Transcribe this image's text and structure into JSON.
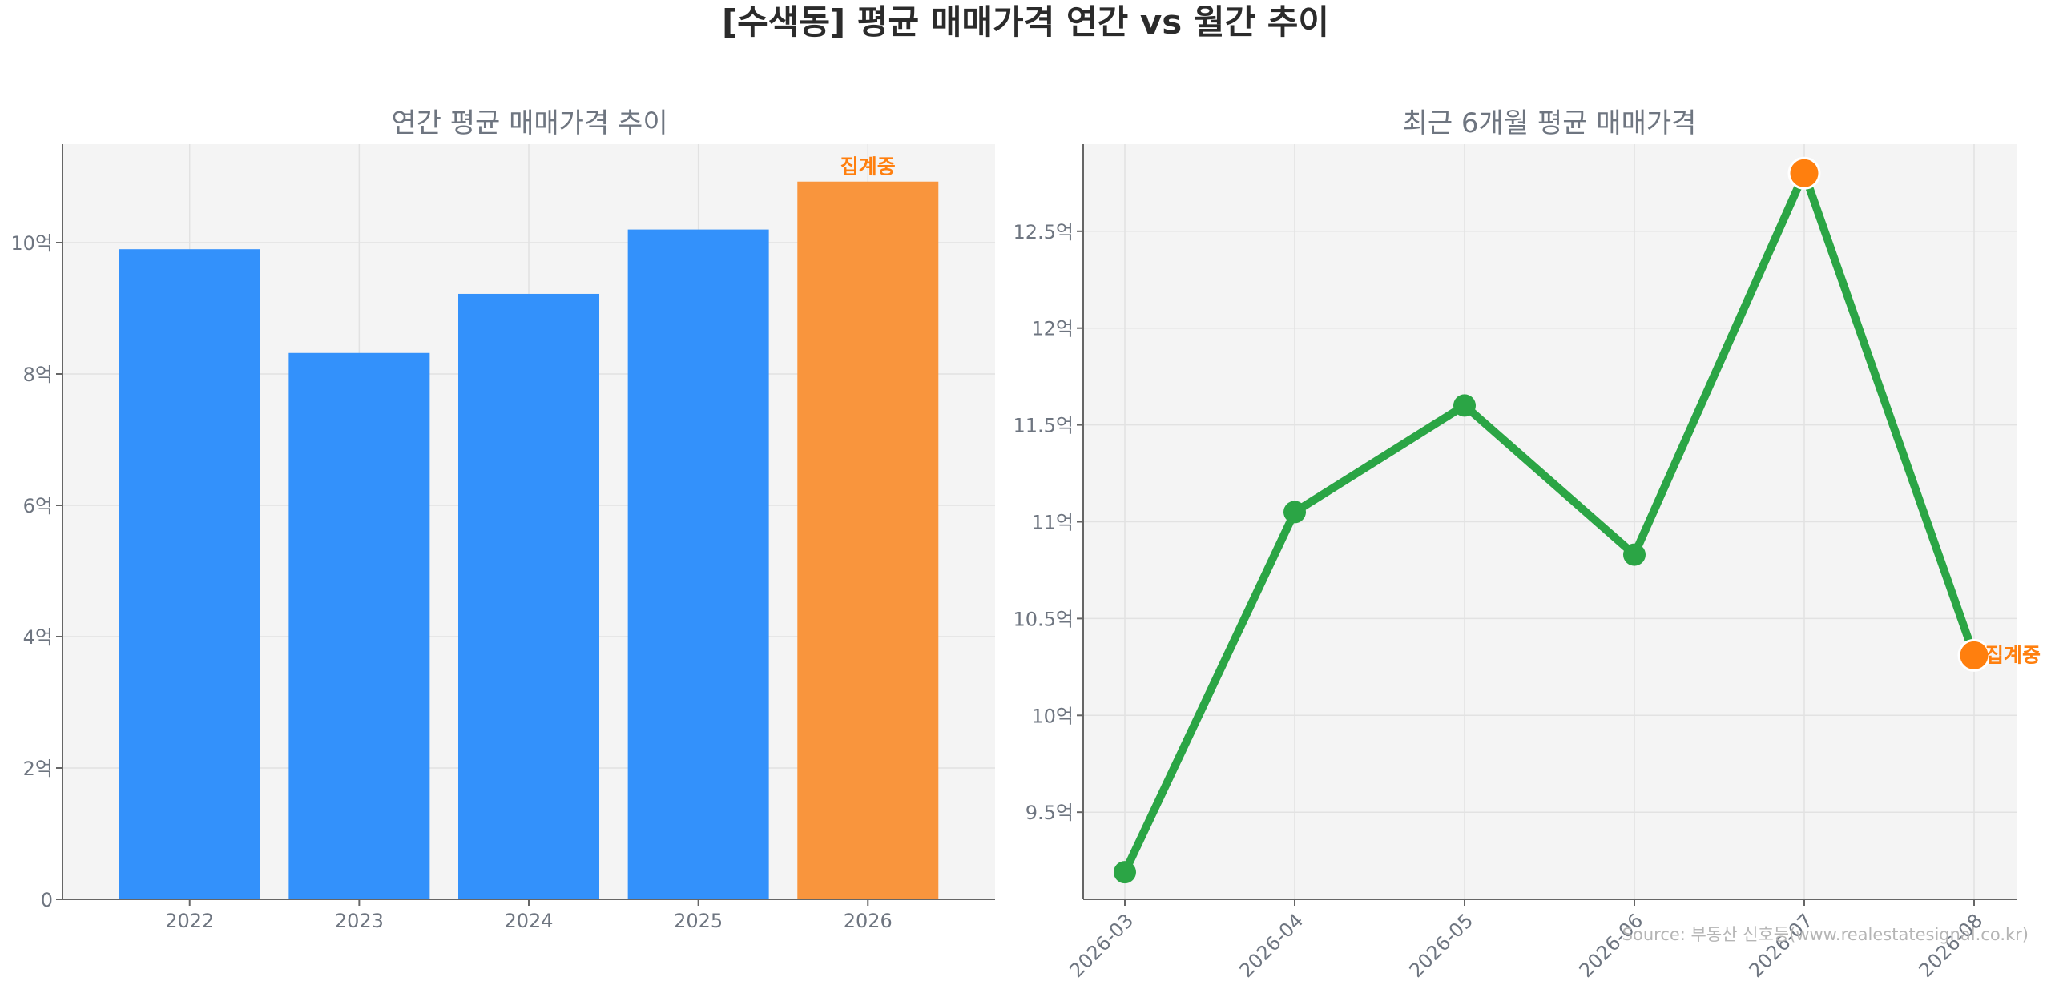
{
  "figure_title": "[수색동] 평균 매매가격 연간 vs 월간 추이",
  "source": "Source: 부동산 신호등(www.realestatesignal.co.kr)",
  "colors": {
    "bar_blue": "#3391fb",
    "bar_orange": "#f9953d",
    "line_green": "#2ba545",
    "highlight_orange": "#ff7f0e",
    "panel_bg": "#f4f4f4"
  },
  "chart_data": [
    {
      "type": "bar",
      "title": "연간 평균 매매가격 추이",
      "categories": [
        "2022",
        "2023",
        "2024",
        "2025",
        "2026"
      ],
      "values": [
        9.9,
        8.32,
        9.22,
        10.2,
        10.93
      ],
      "unit_suffix": "억",
      "ylim": [
        0,
        11.5
      ],
      "yticks": [
        {
          "value": 0,
          "label": "0"
        },
        {
          "value": 2,
          "label": "2억"
        },
        {
          "value": 4,
          "label": "4억"
        },
        {
          "value": 6,
          "label": "6억"
        },
        {
          "value": 8,
          "label": "8억"
        },
        {
          "value": 10,
          "label": "10억"
        }
      ],
      "highlight_index": 4,
      "highlight_label": "집계중",
      "grid": true
    },
    {
      "type": "line",
      "title": "최근 6개월 평균 매매가격",
      "x": [
        "2026-03",
        "2026-04",
        "2026-05",
        "2026-06",
        "2026-07",
        "2026-08"
      ],
      "values": [
        9.19,
        11.05,
        11.6,
        10.83,
        12.8,
        10.31
      ],
      "ylim": [
        9.05,
        12.95
      ],
      "yticks": [
        {
          "value": 9.5,
          "label": "9.5억"
        },
        {
          "value": 10,
          "label": "10억"
        },
        {
          "value": 10.5,
          "label": "10.5억"
        },
        {
          "value": 11,
          "label": "11억"
        },
        {
          "value": 11.5,
          "label": "11.5억"
        },
        {
          "value": 12,
          "label": "12억"
        },
        {
          "value": 12.5,
          "label": "12.5억"
        }
      ],
      "highlight_max_index": 4,
      "highlight_last_index": 5,
      "highlight_label": "집계중",
      "grid": true
    }
  ]
}
